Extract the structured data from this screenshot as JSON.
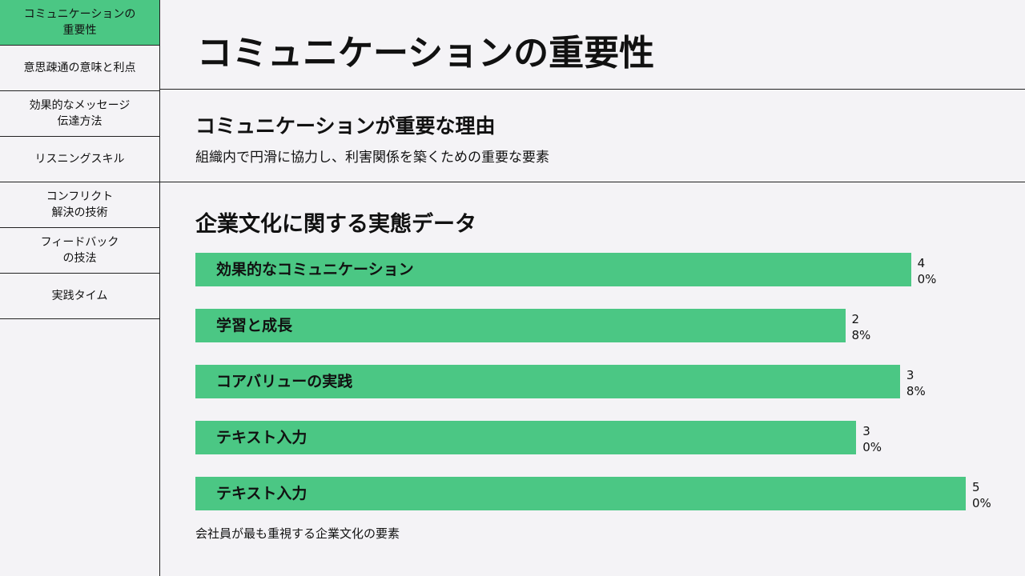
{
  "sidebar": {
    "items": [
      "コミュニケーションの\n重要性",
      "意思疎通の意味と利点",
      "効果的なメッセージ\n伝達方法",
      "リスニングスキル",
      "コンフリクト\n解決の技術",
      "フィードバック\nの技法",
      "実践タイム"
    ],
    "active": 0
  },
  "header": {
    "title": "コミュニケーションの重要性"
  },
  "section": {
    "heading": "コミュニケーションが重要な理由",
    "text": "組織内で円滑に協力し、利害関係を築くための重要な要素"
  },
  "chart_data": {
    "type": "bar",
    "orientation": "horizontal",
    "title": "企業文化に関する実態データ",
    "categories": [
      "効果的なコミュニケーション",
      "学習と成長",
      "コアバリューの実践",
      "テキスト入力",
      "テキスト入力"
    ],
    "values": [
      40,
      28,
      38,
      30,
      50
    ],
    "value_labels": [
      "40%",
      "28%",
      "38%",
      "30%",
      "50%"
    ],
    "color": "#4bc784",
    "caption": "会社員が最も重視する企業文化の要素"
  }
}
